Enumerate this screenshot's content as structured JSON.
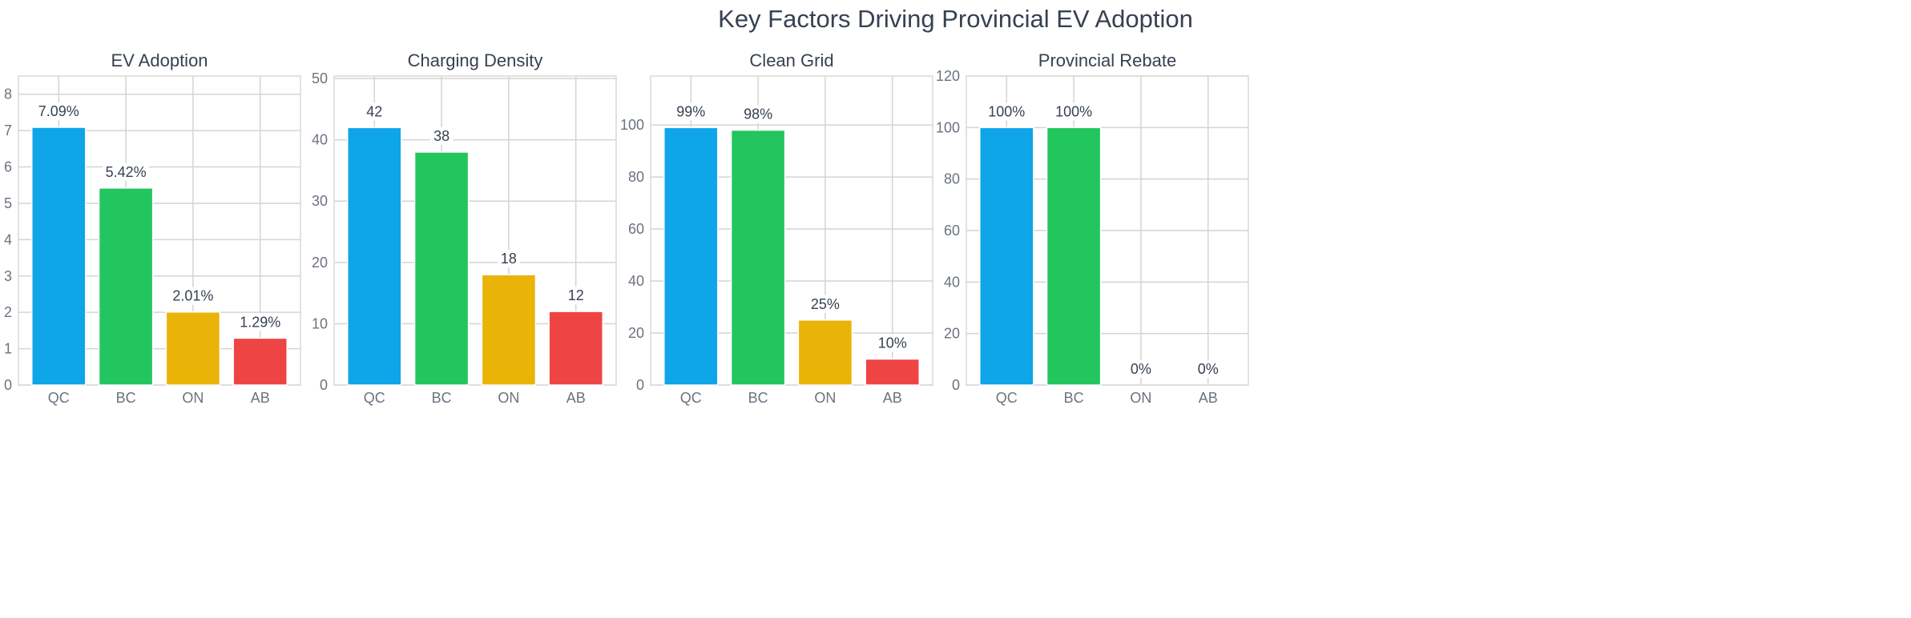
{
  "title": "Key Factors Driving Provincial EV Adoption",
  "chart_data": [
    {
      "type": "bar",
      "title": "EV Adoption",
      "categories": [
        "QC",
        "BC",
        "ON",
        "AB"
      ],
      "values": [
        7.09,
        5.42,
        2.01,
        1.29
      ],
      "labels": [
        "7.09%",
        "5.42%",
        "2.01%",
        "1.29%"
      ],
      "ylim": [
        0,
        8.5
      ],
      "yticks": [
        0,
        1,
        2,
        3,
        4,
        5,
        6,
        7,
        8
      ],
      "grid": true
    },
    {
      "type": "bar",
      "title": "Charging Density",
      "categories": [
        "QC",
        "BC",
        "ON",
        "AB"
      ],
      "values": [
        42,
        38,
        18,
        12
      ],
      "labels": [
        "42",
        "38",
        "18",
        "12"
      ],
      "ylim": [
        0,
        50.4
      ],
      "yticks": [
        0,
        10,
        20,
        30,
        40,
        50
      ],
      "grid": true
    },
    {
      "type": "bar",
      "title": "Clean Grid",
      "categories": [
        "QC",
        "BC",
        "ON",
        "AB"
      ],
      "values": [
        99,
        98,
        25,
        10
      ],
      "labels": [
        "99%",
        "98%",
        "25%",
        "10%"
      ],
      "ylim": [
        0,
        118.8
      ],
      "yticks": [
        0,
        20,
        40,
        60,
        80,
        100
      ],
      "grid": true
    },
    {
      "type": "bar",
      "title": "Provincial Rebate",
      "categories": [
        "QC",
        "BC",
        "ON",
        "AB"
      ],
      "values": [
        100,
        100,
        0,
        0
      ],
      "labels": [
        "100%",
        "100%",
        "0%",
        "0%"
      ],
      "ylim": [
        0,
        120
      ],
      "yticks": [
        0,
        20,
        40,
        60,
        80,
        100,
        120
      ],
      "grid": true
    }
  ],
  "colors": [
    "#0ea5e9",
    "#22c55e",
    "#eab308",
    "#ef4444"
  ]
}
